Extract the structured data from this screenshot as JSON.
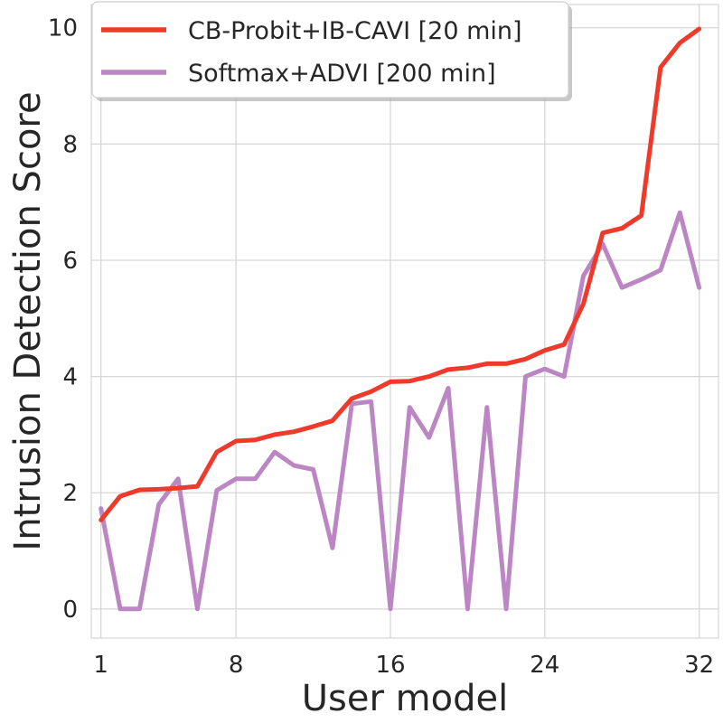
{
  "chart_data": {
    "type": "line",
    "xlabel": "User model",
    "ylabel": "Intrusion Detection Score",
    "xlim": [
      0.5,
      33
    ],
    "ylim": [
      -0.5,
      10.4
    ],
    "xticks": [
      1,
      8,
      16,
      24,
      32
    ],
    "yticks": [
      0,
      2,
      4,
      6,
      8,
      10
    ],
    "grid": true,
    "legend_position": "top-left",
    "x": [
      1,
      2,
      3,
      4,
      5,
      6,
      7,
      8,
      9,
      10,
      11,
      12,
      13,
      14,
      15,
      16,
      17,
      18,
      19,
      20,
      21,
      22,
      23,
      24,
      25,
      26,
      27,
      28,
      29,
      30,
      31,
      32
    ],
    "series": [
      {
        "name": "CB-Probit+IB-CAVI [20 min]",
        "color": "#ee3a2a",
        "values": [
          1.53,
          1.94,
          2.05,
          2.06,
          2.08,
          2.11,
          2.7,
          2.89,
          2.91,
          3.0,
          3.05,
          3.14,
          3.24,
          3.62,
          3.74,
          3.91,
          3.92,
          4.0,
          4.12,
          4.15,
          4.22,
          4.22,
          4.3,
          4.45,
          4.55,
          5.25,
          6.47,
          6.55,
          6.77,
          9.32,
          9.74,
          9.98
        ]
      },
      {
        "name": "Softmax+ADVI [200 min]",
        "color": "#bb86c3",
        "values": [
          1.73,
          0.0,
          0.0,
          1.8,
          2.24,
          0.0,
          2.04,
          2.24,
          2.24,
          2.7,
          2.47,
          2.4,
          1.05,
          3.53,
          3.57,
          0.0,
          3.47,
          2.95,
          3.8,
          0.0,
          3.47,
          0.0,
          4.0,
          4.13,
          4.0,
          5.73,
          6.28,
          5.53,
          5.67,
          5.83,
          6.82,
          5.53
        ]
      }
    ]
  }
}
